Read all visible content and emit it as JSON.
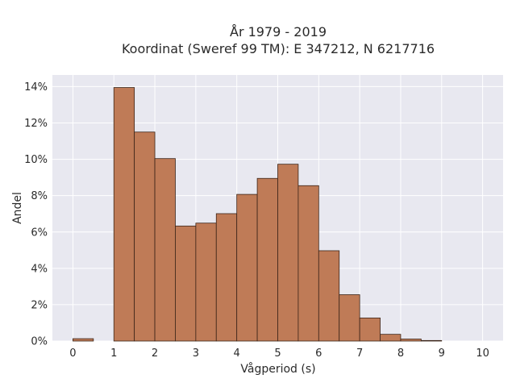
{
  "chart_data": {
    "type": "bar",
    "title": "År 1979 - 2019",
    "subtitle": "Koordinat (Sweref 99 TM): E 347212, N 6217716",
    "xlabel": "Vågperiod (s)",
    "ylabel": "Andel",
    "xlim": [
      -0.5,
      10.5
    ],
    "ylim": [
      0,
      0.1464
    ],
    "x_ticks": [
      0,
      1,
      2,
      3,
      4,
      5,
      6,
      7,
      8,
      9,
      10
    ],
    "x_tick_labels": [
      "0",
      "1",
      "2",
      "3",
      "4",
      "5",
      "6",
      "7",
      "8",
      "9",
      "10"
    ],
    "y_ticks": [
      0,
      0.02,
      0.04,
      0.06,
      0.08,
      0.1,
      0.12,
      0.14
    ],
    "y_tick_labels": [
      "0%",
      "2%",
      "4%",
      "6%",
      "8%",
      "10%",
      "12%",
      "14%"
    ],
    "bin_width": 0.5,
    "bins": [
      {
        "x0": 0.0,
        "x1": 0.5,
        "value": 0.0013
      },
      {
        "x0": 0.5,
        "x1": 1.0,
        "value": 0.0
      },
      {
        "x0": 1.0,
        "x1": 1.5,
        "value": 0.1395
      },
      {
        "x0": 1.5,
        "x1": 2.0,
        "value": 0.115
      },
      {
        "x0": 2.0,
        "x1": 2.5,
        "value": 0.1004
      },
      {
        "x0": 2.5,
        "x1": 3.0,
        "value": 0.0633
      },
      {
        "x0": 3.0,
        "x1": 3.5,
        "value": 0.0649
      },
      {
        "x0": 3.5,
        "x1": 4.0,
        "value": 0.0701
      },
      {
        "x0": 4.0,
        "x1": 4.5,
        "value": 0.0807
      },
      {
        "x0": 4.5,
        "x1": 5.0,
        "value": 0.0895
      },
      {
        "x0": 5.0,
        "x1": 5.5,
        "value": 0.0973
      },
      {
        "x0": 5.5,
        "x1": 6.0,
        "value": 0.0855
      },
      {
        "x0": 6.0,
        "x1": 6.5,
        "value": 0.0497
      },
      {
        "x0": 6.5,
        "x1": 7.0,
        "value": 0.0255
      },
      {
        "x0": 7.0,
        "x1": 7.5,
        "value": 0.0127
      },
      {
        "x0": 7.5,
        "x1": 8.0,
        "value": 0.0037
      },
      {
        "x0": 8.0,
        "x1": 8.5,
        "value": 0.0011
      },
      {
        "x0": 8.5,
        "x1": 9.0,
        "value": 0.0003
      }
    ],
    "bar_color": "#bf7b57",
    "bar_edge_color": "#3b2418",
    "background_color": "#e8e8f0",
    "grid": true,
    "grid_color": "#ffffff",
    "legend": false
  }
}
